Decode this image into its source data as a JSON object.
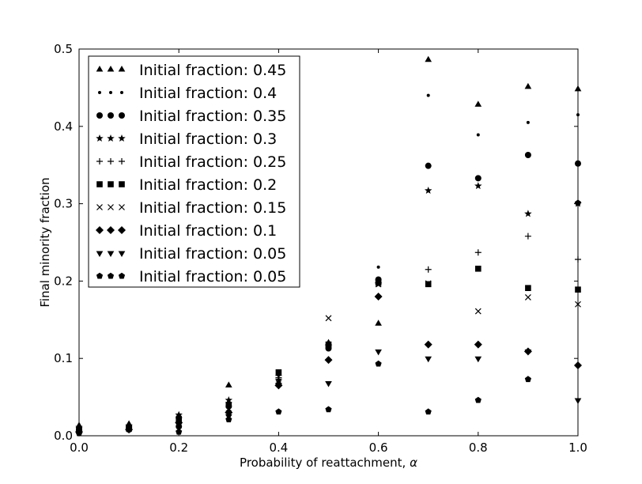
{
  "chart_data": {
    "type": "scatter",
    "title": "",
    "xlabel": "Probability of reattachment, ",
    "xlabel_symbol": "α",
    "ylabel": "Final minority fraction",
    "xlim": [
      0.0,
      1.0
    ],
    "ylim": [
      0.0,
      0.5
    ],
    "xticks": [
      "0.0",
      "0.2",
      "0.4",
      "0.6",
      "0.8",
      "1.0"
    ],
    "yticks": [
      "0.0",
      "0.1",
      "0.2",
      "0.3",
      "0.4",
      "0.5"
    ],
    "grid": false,
    "legend_position": "top-left",
    "series": [
      {
        "name": "Initial fraction: 0.45",
        "marker": "triangle-up",
        "x": [
          0.0,
          0.1,
          0.2,
          0.3,
          0.4,
          0.5,
          0.6,
          0.7,
          0.8,
          0.9,
          1.0
        ],
        "y": [
          0.013,
          0.015,
          0.026,
          0.065,
          0.08,
          0.12,
          0.145,
          0.486,
          0.428,
          0.451,
          0.448
        ]
      },
      {
        "name": "Initial fraction: 0.4",
        "marker": "point",
        "x": [
          0.0,
          0.1,
          0.2,
          0.3,
          0.4,
          0.5,
          0.6,
          0.7,
          0.8,
          0.9,
          1.0
        ],
        "y": [
          0.01,
          0.012,
          0.024,
          0.042,
          0.078,
          0.117,
          0.218,
          0.44,
          0.389,
          0.405,
          0.415
        ]
      },
      {
        "name": "Initial fraction: 0.35",
        "marker": "circle",
        "x": [
          0.0,
          0.1,
          0.2,
          0.3,
          0.4,
          0.5,
          0.6,
          0.7,
          0.8,
          0.9,
          1.0
        ],
        "y": [
          0.008,
          0.01,
          0.012,
          0.038,
          0.066,
          0.113,
          0.202,
          0.349,
          0.333,
          0.363,
          0.352
        ]
      },
      {
        "name": "Initial fraction: 0.3",
        "marker": "star",
        "x": [
          0.0,
          0.1,
          0.2,
          0.3,
          0.4,
          0.5,
          0.6,
          0.7,
          0.8,
          0.9,
          1.0
        ],
        "y": [
          0.011,
          0.013,
          0.027,
          0.046,
          0.072,
          0.116,
          0.196,
          0.317,
          0.323,
          0.287,
          0.3
        ]
      },
      {
        "name": "Initial fraction: 0.25",
        "marker": "plus",
        "x": [
          0.0,
          0.1,
          0.2,
          0.3,
          0.4,
          0.5,
          0.6,
          0.7,
          0.8,
          0.9,
          1.0
        ],
        "y": [
          0.009,
          0.011,
          0.023,
          0.043,
          0.075,
          0.115,
          0.198,
          0.215,
          0.237,
          0.258,
          0.228
        ]
      },
      {
        "name": "Initial fraction: 0.2",
        "marker": "square",
        "x": [
          0.0,
          0.1,
          0.2,
          0.3,
          0.4,
          0.5,
          0.6,
          0.7,
          0.8,
          0.9,
          1.0
        ],
        "y": [
          0.007,
          0.01,
          0.02,
          0.04,
          0.082,
          0.118,
          0.198,
          0.196,
          0.216,
          0.191,
          0.189
        ]
      },
      {
        "name": "Initial fraction: 0.15",
        "marker": "x",
        "x": [
          0.0,
          0.1,
          0.2,
          0.3,
          0.4,
          0.5,
          0.6,
          0.7,
          0.8,
          0.9,
          1.0
        ],
        "y": [
          0.006,
          0.009,
          0.022,
          0.035,
          0.068,
          0.152,
          0.196,
          0.197,
          0.161,
          0.179,
          0.17
        ]
      },
      {
        "name": "Initial fraction: 0.1",
        "marker": "diamond",
        "x": [
          0.0,
          0.1,
          0.2,
          0.3,
          0.4,
          0.5,
          0.6,
          0.7,
          0.8,
          0.9,
          1.0
        ],
        "y": [
          0.005,
          0.008,
          0.017,
          0.03,
          0.065,
          0.098,
          0.18,
          0.118,
          0.118,
          0.109,
          0.091
        ]
      },
      {
        "name": "Initial fraction: 0.05",
        "marker": "triangle-down",
        "x": [
          0.0,
          0.1,
          0.2,
          0.3,
          0.4,
          0.5,
          0.6,
          0.7,
          0.8,
          0.9,
          1.0
        ],
        "y": [
          0.004,
          0.009,
          0.014,
          0.025,
          0.066,
          0.068,
          0.109,
          0.1,
          0.1,
          0.109,
          0.046
        ]
      },
      {
        "name": "Initial fraction: 0.05",
        "marker": "pentagon",
        "x": [
          0.0,
          0.1,
          0.2,
          0.3,
          0.4,
          0.5,
          0.6,
          0.7,
          0.8,
          0.9,
          1.0
        ],
        "y": [
          0.003,
          0.008,
          0.005,
          0.021,
          0.031,
          0.034,
          0.093,
          0.031,
          0.046,
          0.073,
          0.301
        ]
      }
    ]
  }
}
